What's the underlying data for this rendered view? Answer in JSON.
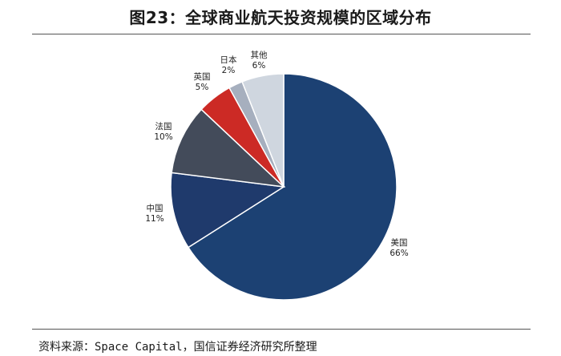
{
  "title": "图23：全球商业航天投资规模的区域分布",
  "source": {
    "label": "资料来源：",
    "text": "Space Capital，国信证券经济研究所整理"
  },
  "chart_data": {
    "type": "pie",
    "title": "图23：全球商业航天投资规模的区域分布",
    "slices": [
      {
        "label": "美国",
        "value": 66,
        "value_label": "66%",
        "color": "#1c4173"
      },
      {
        "label": "中国",
        "value": 11,
        "value_label": "11%",
        "color": "#1f3a6c"
      },
      {
        "label": "法国",
        "value": 10,
        "value_label": "10%",
        "color": "#434b5a"
      },
      {
        "label": "英国",
        "value": 5,
        "value_label": "5%",
        "color": "#cc2a25"
      },
      {
        "label": "日本",
        "value": 2,
        "value_label": "2%",
        "color": "#a6afbe"
      },
      {
        "label": "其他",
        "value": 6,
        "value_label": "6%",
        "color": "#cfd6df"
      }
    ],
    "start_angle": "12 o'clock",
    "direction": "clockwise",
    "legend": "none"
  }
}
